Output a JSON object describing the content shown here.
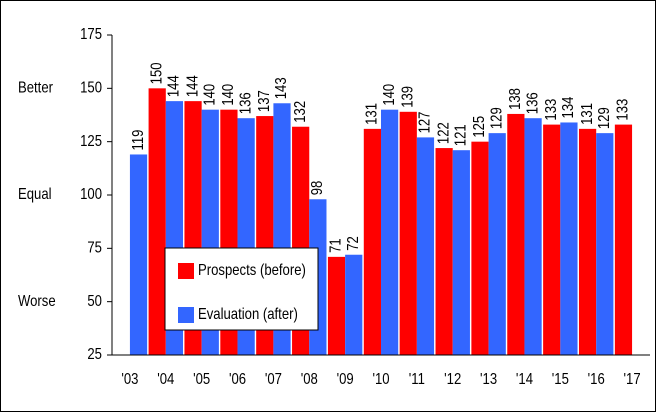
{
  "chart_data": {
    "type": "bar",
    "categories": [
      "'03",
      "'04",
      "'05",
      "'06",
      "'07",
      "'08",
      "'09",
      "'10",
      "'11",
      "'12",
      "'13",
      "'14",
      "'15",
      "'16",
      "'17"
    ],
    "series": [
      {
        "name": "Prospects (before)",
        "color": "#ff0000",
        "values": [
          null,
          150,
          144,
          140,
          137,
          132,
          71,
          131,
          139,
          122,
          125,
          138,
          133,
          131,
          133
        ]
      },
      {
        "name": "Evaluation (after)",
        "color": "#3366ff",
        "values": [
          119,
          144,
          140,
          136,
          143,
          98,
          72,
          140,
          127,
          121,
          129,
          136,
          134,
          129,
          null
        ]
      }
    ],
    "ylim": [
      25,
      175
    ],
    "yticks": [
      25,
      50,
      75,
      100,
      125,
      150,
      175
    ],
    "annotations": [
      {
        "text": "Better",
        "y": 150
      },
      {
        "text": "Equal",
        "y": 100
      },
      {
        "text": "Worse",
        "y": 50
      }
    ],
    "legend": "center-left"
  }
}
